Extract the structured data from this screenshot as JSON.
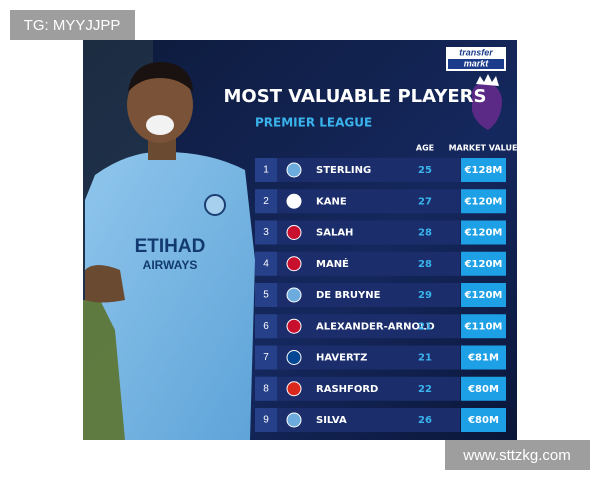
{
  "watermark_top": "TG: MYYJJPP",
  "watermark_bottom": "www.sttzkg.com",
  "logo": {
    "line1": "transfer",
    "line2": "markt"
  },
  "header": {
    "title": "MOST VALUABLE PLAYERS",
    "subtitle": "PREMIER LEAGUE"
  },
  "photo": {
    "sponsor_line1": "ETIHAD",
    "sponsor_line2": "AIRWAYS"
  },
  "table": {
    "columns": {
      "age": "AGE",
      "value": "MARKET VALUE"
    },
    "rows": [
      {
        "rank": 1,
        "club_color": "#6cabdd",
        "player": "STERLING",
        "age": 25,
        "value": "€128M"
      },
      {
        "rank": 2,
        "club_color": "#ffffff",
        "player": "KANE",
        "age": 27,
        "value": "€120M"
      },
      {
        "rank": 3,
        "club_color": "#c8102e",
        "player": "SALAH",
        "age": 28,
        "value": "€120M"
      },
      {
        "rank": 4,
        "club_color": "#c8102e",
        "player": "MANÉ",
        "age": 28,
        "value": "€120M"
      },
      {
        "rank": 5,
        "club_color": "#6cabdd",
        "player": "DE BRUYNE",
        "age": 29,
        "value": "€120M"
      },
      {
        "rank": 6,
        "club_color": "#c8102e",
        "player": "ALEXANDER-ARNOLD",
        "age": 21,
        "value": "€110M"
      },
      {
        "rank": 7,
        "club_color": "#034694",
        "player": "HAVERTZ",
        "age": 21,
        "value": "€81M"
      },
      {
        "rank": 8,
        "club_color": "#da291c",
        "player": "RASHFORD",
        "age": 22,
        "value": "€80M"
      },
      {
        "rank": 9,
        "club_color": "#6cabdd",
        "player": "SILVA",
        "age": 26,
        "value": "€80M"
      }
    ]
  }
}
